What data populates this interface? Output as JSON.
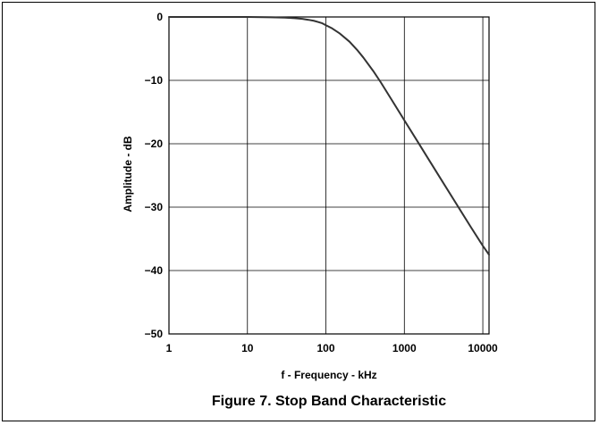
{
  "chart_data": {
    "type": "line",
    "caption": "Figure 7. Stop Band Characteristic",
    "xlabel": "f - Frequency - kHz",
    "ylabel": "Amplitude - dB",
    "x_scale": "log",
    "xlim": [
      1,
      12000
    ],
    "ylim": [
      -50,
      0
    ],
    "x_ticks": [
      1,
      10,
      100,
      1000,
      10000
    ],
    "x_tick_labels": [
      "1",
      "10",
      "100",
      "1000",
      "10000"
    ],
    "y_ticks": [
      0,
      -10,
      -20,
      -30,
      -40,
      -50
    ],
    "y_tick_labels": [
      "0",
      "−10",
      "−20",
      "−30",
      "−40",
      "−50"
    ],
    "grid": true,
    "series": [
      {
        "color": "#333333",
        "x": [
          1,
          5,
          10,
          20,
          30,
          40,
          50,
          60,
          70,
          80,
          90,
          100,
          120,
          150,
          200,
          250,
          300,
          400,
          500,
          700,
          1000,
          1500,
          2000,
          3000,
          5000,
          7000,
          10000,
          12000
        ],
        "y": [
          0,
          0,
          0,
          -0.05,
          -0.1,
          -0.2,
          -0.3,
          -0.45,
          -0.6,
          -0.8,
          -1.0,
          -1.3,
          -1.8,
          -2.6,
          -3.9,
          -5.2,
          -6.4,
          -8.5,
          -10.3,
          -13.2,
          -16.3,
          -19.8,
          -22.3,
          -25.8,
          -30.2,
          -33.1,
          -36.1,
          -37.5
        ]
      }
    ]
  }
}
